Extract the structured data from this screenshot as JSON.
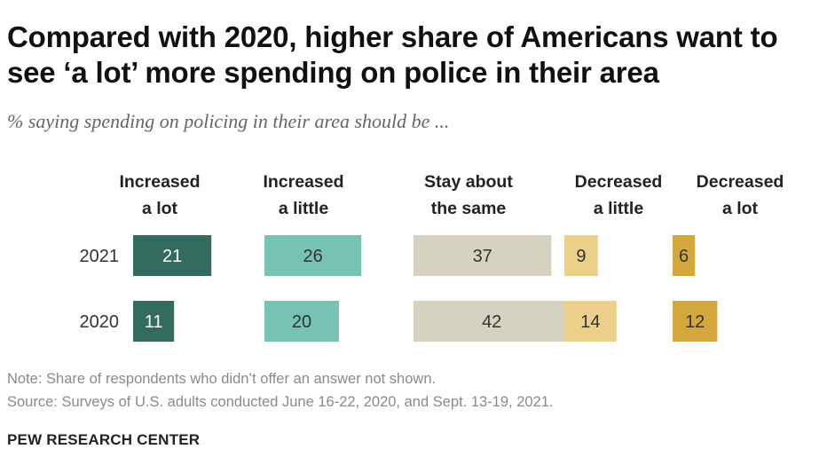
{
  "title": "Compared with 2020, higher share of Americans want to see ‘a lot’ more spending on police in their area",
  "subtitle": "% saying spending on policing in their area should be ...",
  "note": "Note: Share of respondents who didn’t offer an answer not shown.",
  "source": "Source: Surveys of U.S. adults conducted June 16-22, 2020, and Sept. 13-19, 2021.",
  "brand": "PEW RESEARCH CENTER",
  "colors": {
    "increased_a_lot": "#336b5e",
    "increased_a_little": "#76c2b3",
    "stay_about_the_same": "#d6d2c2",
    "decreased_a_little": "#ecd089",
    "decreased_a_lot": "#d4a83c",
    "label_dark": "#ffffff",
    "label_light": "#333333"
  },
  "chart_data": {
    "type": "bar",
    "orientation": "horizontal",
    "layout": "grouped-columns",
    "title": "Compared with 2020, higher share of Americans want to see ‘a lot’ more spending on police in their area",
    "subtitle": "% saying spending on policing in their area should be ...",
    "categories": [
      "2021",
      "2020"
    ],
    "series": [
      {
        "name": "Increased a lot",
        "header": [
          "Increased",
          "a lot"
        ],
        "values": [
          21,
          11
        ],
        "color_key": "increased_a_lot",
        "text": "light"
      },
      {
        "name": "Increased a little",
        "header": [
          "Increased",
          "a little"
        ],
        "values": [
          26,
          20
        ],
        "color_key": "increased_a_little",
        "text": "dark"
      },
      {
        "name": "Stay about the same",
        "header": [
          "Stay about",
          "the same"
        ],
        "values": [
          37,
          42
        ],
        "color_key": "stay_about_the_same",
        "text": "dark"
      },
      {
        "name": "Decreased a little",
        "header": [
          "Decreased",
          "a little"
        ],
        "values": [
          9,
          14
        ],
        "color_key": "decreased_a_little",
        "text": "dark"
      },
      {
        "name": "Decreased a lot",
        "header": [
          "Decreased",
          "a lot"
        ],
        "values": [
          6,
          12
        ],
        "color_key": "decreased_a_lot",
        "text": "dark"
      }
    ],
    "xlabel": "",
    "ylabel": "",
    "data_labels": true,
    "grid": false,
    "legend": "column-headers-top"
  }
}
